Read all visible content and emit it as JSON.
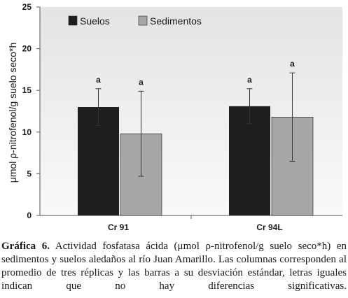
{
  "chart_data": {
    "type": "bar",
    "categories": [
      "Cr 91",
      "Cr 94L"
    ],
    "series": [
      {
        "name": "Suelos",
        "color": "#1e1e1e",
        "values": [
          13.0,
          13.1
        ],
        "errors": [
          2.2,
          2.1
        ],
        "labels": [
          "a",
          "a"
        ]
      },
      {
        "name": "Sedimentos",
        "color": "#a7a7a7",
        "values": [
          9.8,
          11.8
        ],
        "errors": [
          5.1,
          5.3
        ],
        "labels": [
          "a",
          "a"
        ]
      }
    ],
    "ylabel": "μmol ρ-nitrofenol/g suelo seco*h",
    "xlabel": "",
    "title": "",
    "ylim": [
      0,
      25
    ],
    "yticks": [
      0,
      5,
      10,
      15,
      20,
      25
    ],
    "grid": false,
    "legend": "top-left",
    "plot_background": "#ececec"
  },
  "caption": {
    "label": "Gráfica 6.",
    "text": " Actividad fosfatasa ácida (μmol ρ-nitrofenol/g suelo seco*h) en sedimentos y suelos aledaños al río Juan Amarillo. Las columnas corresponden al promedio de tres réplicas y las barras a su desviación estándar, letras iguales indican que no hay diferencias significativas."
  }
}
